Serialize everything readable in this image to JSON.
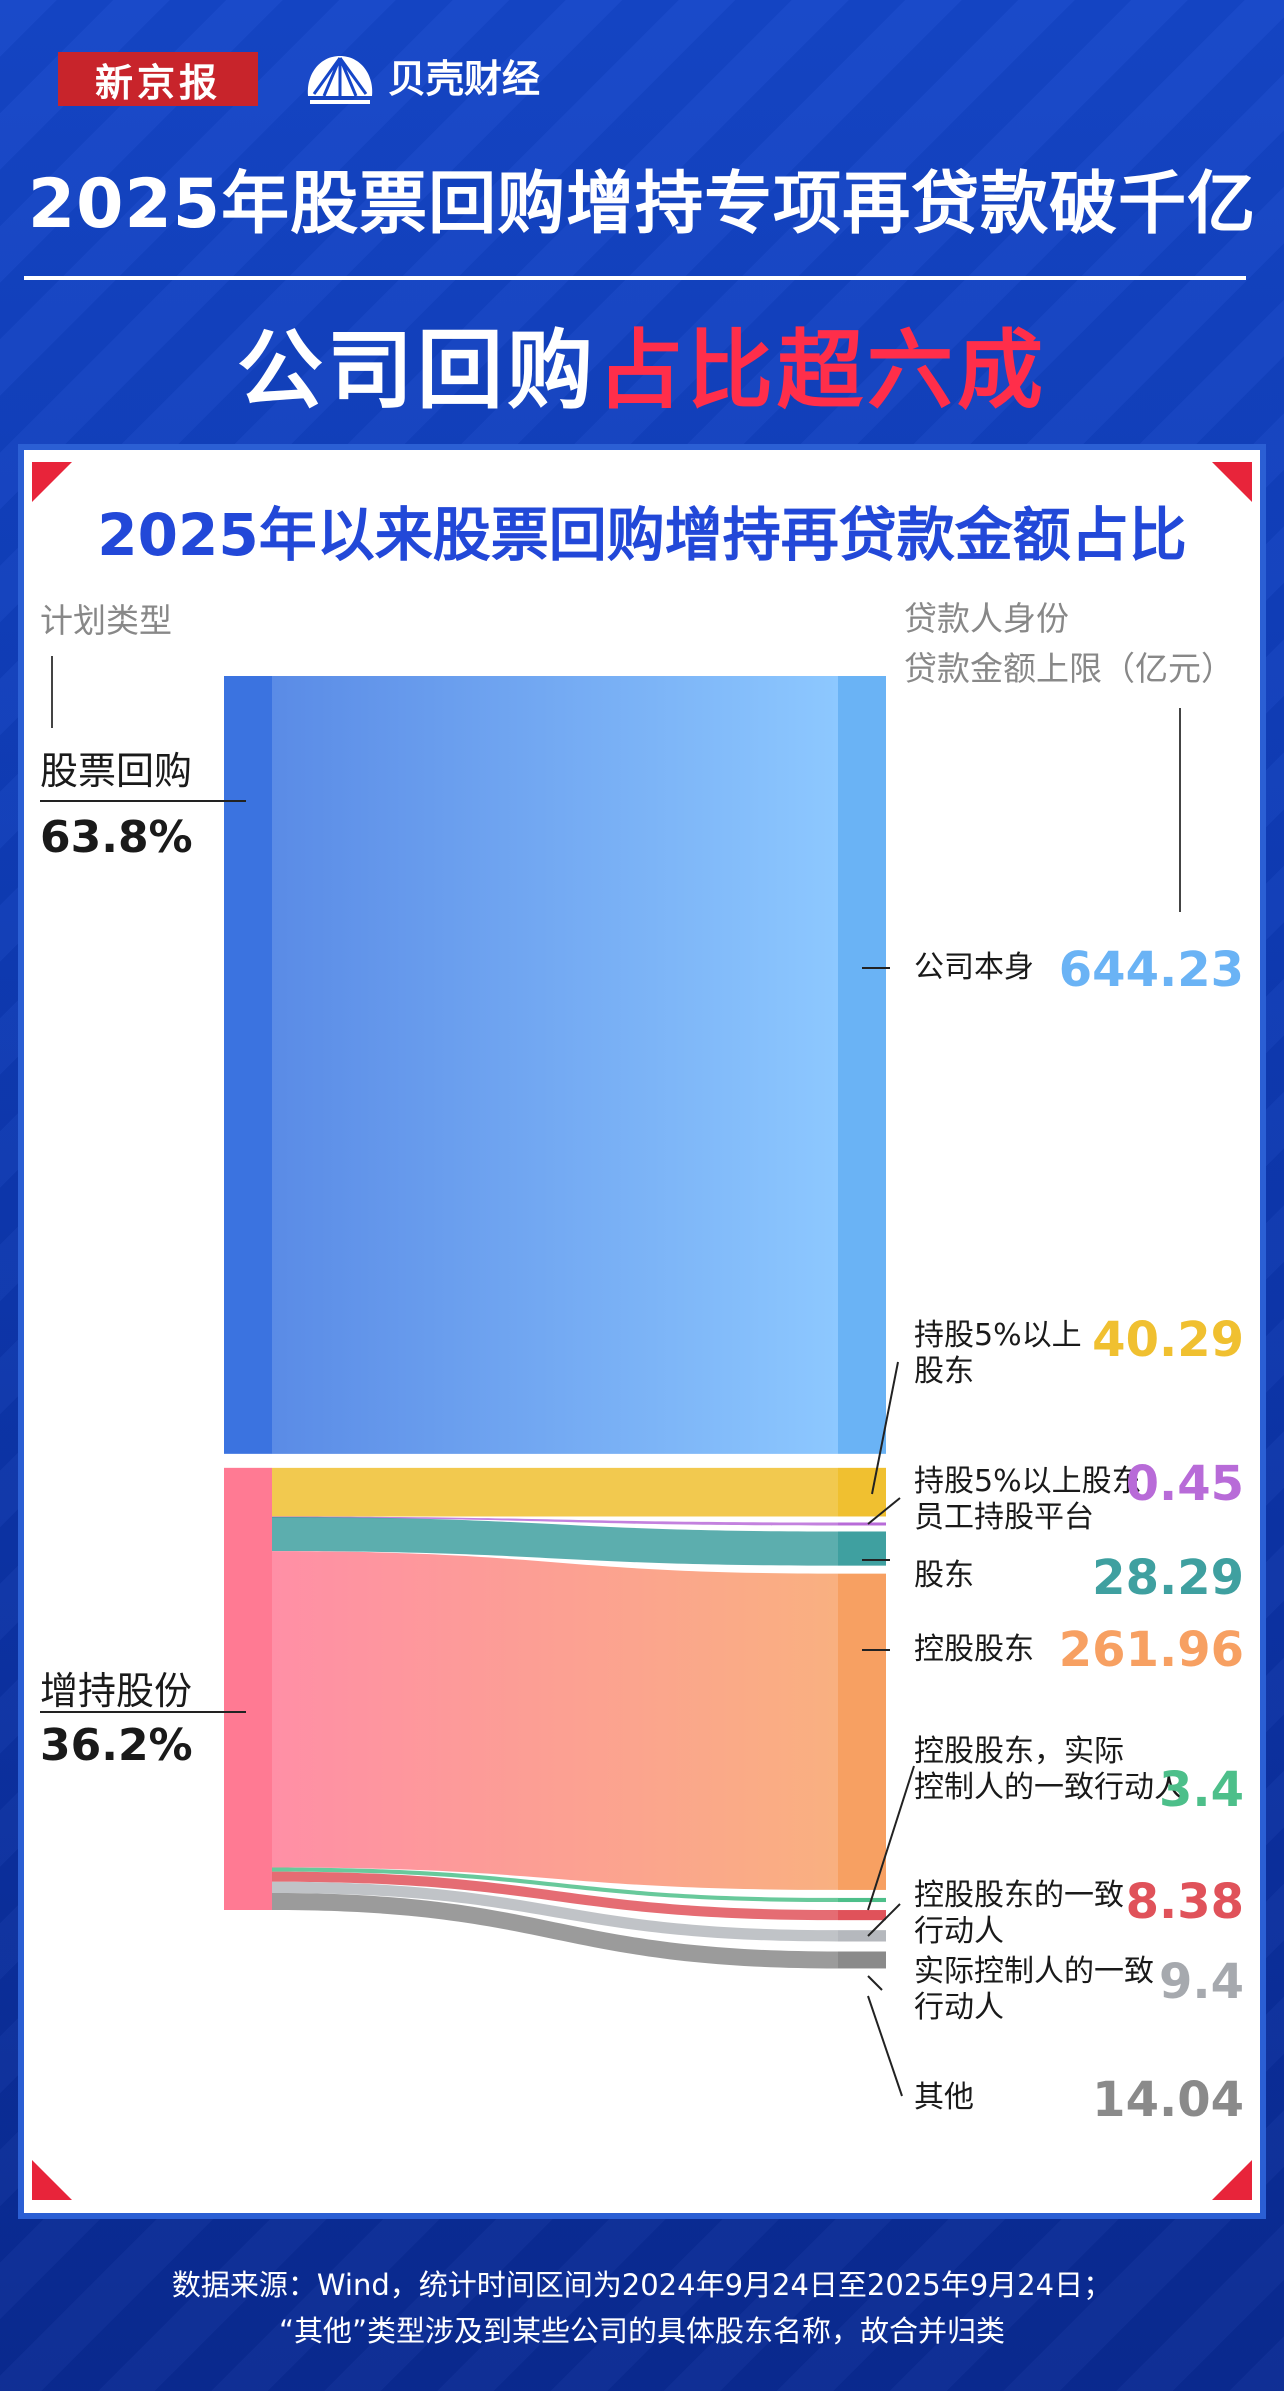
{
  "header": {
    "brand_xjb": "新京报",
    "brand_bk": "贝壳财经",
    "title_line1": "2025年股票回购增持专项再贷款破千亿",
    "title_line2_white": "公司回购",
    "title_line2_red": "占比超六成"
  },
  "chart_data": {
    "type": "sankey",
    "title": "2025年以来股票回购增持再贷款金额占比",
    "left_header": "计划类型",
    "right_header_1": "贷款人身份",
    "right_header_2": "贷款金额上限（亿元）",
    "sources": [
      {
        "name": "股票回购",
        "share": "63.8%"
      },
      {
        "name": "增持股份",
        "share": "36.2%"
      }
    ],
    "flows": [
      {
        "from": "股票回购",
        "to": "公司本身",
        "value": 644.23,
        "value_label": "644.23"
      },
      {
        "from": "增持股份",
        "to": "持股5%以上股东",
        "value": 40.29,
        "value_label": "40.29"
      },
      {
        "from": "增持股份",
        "to": "持股5%以上股东员工持股平台",
        "value": 0.45,
        "value_label": "0.45"
      },
      {
        "from": "增持股份",
        "to": "股东",
        "value": 28.29,
        "value_label": "28.29"
      },
      {
        "from": "增持股份",
        "to": "控股股东",
        "value": 261.96,
        "value_label": "261.96"
      },
      {
        "from": "增持股份",
        "to": "控股股东，实际控制人的一致行动人",
        "value": 3.4,
        "value_label": "3.4"
      },
      {
        "from": "增持股份",
        "to": "控股股东的一致行动人",
        "value": 8.38,
        "value_label": "8.38"
      },
      {
        "from": "增持股份",
        "to": "实际控制人的一致行动人",
        "value": 9.4,
        "value_label": "9.4"
      },
      {
        "from": "增持股份",
        "to": "其他",
        "value": 14.04,
        "value_label": "14.04"
      }
    ],
    "target_labels": [
      [
        "公司本身"
      ],
      [
        "持股5%以上",
        "股东"
      ],
      [
        "持股5%以上股东",
        "员工持股平台"
      ],
      [
        "股东"
      ],
      [
        "控股股东"
      ],
      [
        "控股股东，实际",
        "控制人的一致行动人"
      ],
      [
        "控股股东的一致",
        "行动人"
      ],
      [
        "实际控制人的一致",
        "行动人"
      ],
      [
        "其他"
      ]
    ],
    "colors": {
      "repurchase_bar": "#3b73e0",
      "increase_bar": "#ff7a93",
      "公司本身": "#6ab3f5",
      "持股5%以上股东": "#f0c030",
      "持股5%以上股东员工持股平台": "#b86bd8",
      "股东": "#3fa0a0",
      "控股股东": "#f7a062",
      "控股股东，实际控制人的一致行动人": "#4dbf8a",
      "控股股东的一致行动人": "#e0525a",
      "实际控制人的一致行动人": "#b5b8bd",
      "其他": "#8a8a8a"
    }
  },
  "footer": {
    "line1": "数据来源：Wind，统计时间区间为2024年9月24日至2025年9月24日；",
    "line2": "“其他”类型涉及到某些公司的具体股东名称，故合并归类"
  }
}
